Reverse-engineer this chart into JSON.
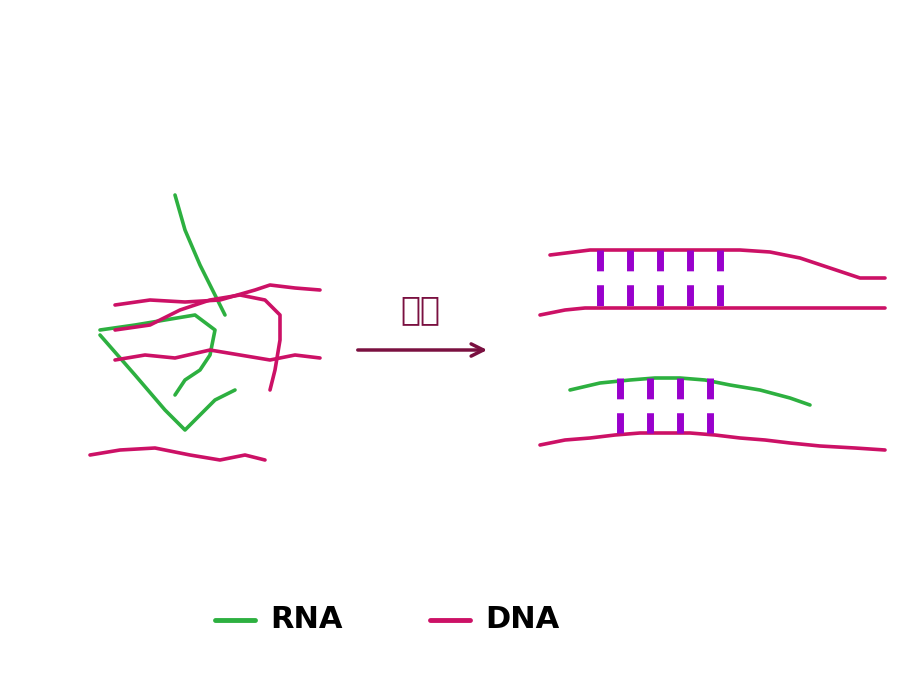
{
  "background_color": "#ffffff",
  "rna_color": "#2db040",
  "dna_color": "#cc1166",
  "ladder_color": "#9900cc",
  "arrow_color": "#7a1040",
  "arrow_text": "复性",
  "arrow_text_color": "#7a1040",
  "legend_rna_label": "RNA",
  "legend_dna_label": "DNA",
  "figsize": [
    9.2,
    6.9
  ],
  "dpi": 100,
  "line_width": 2.6
}
